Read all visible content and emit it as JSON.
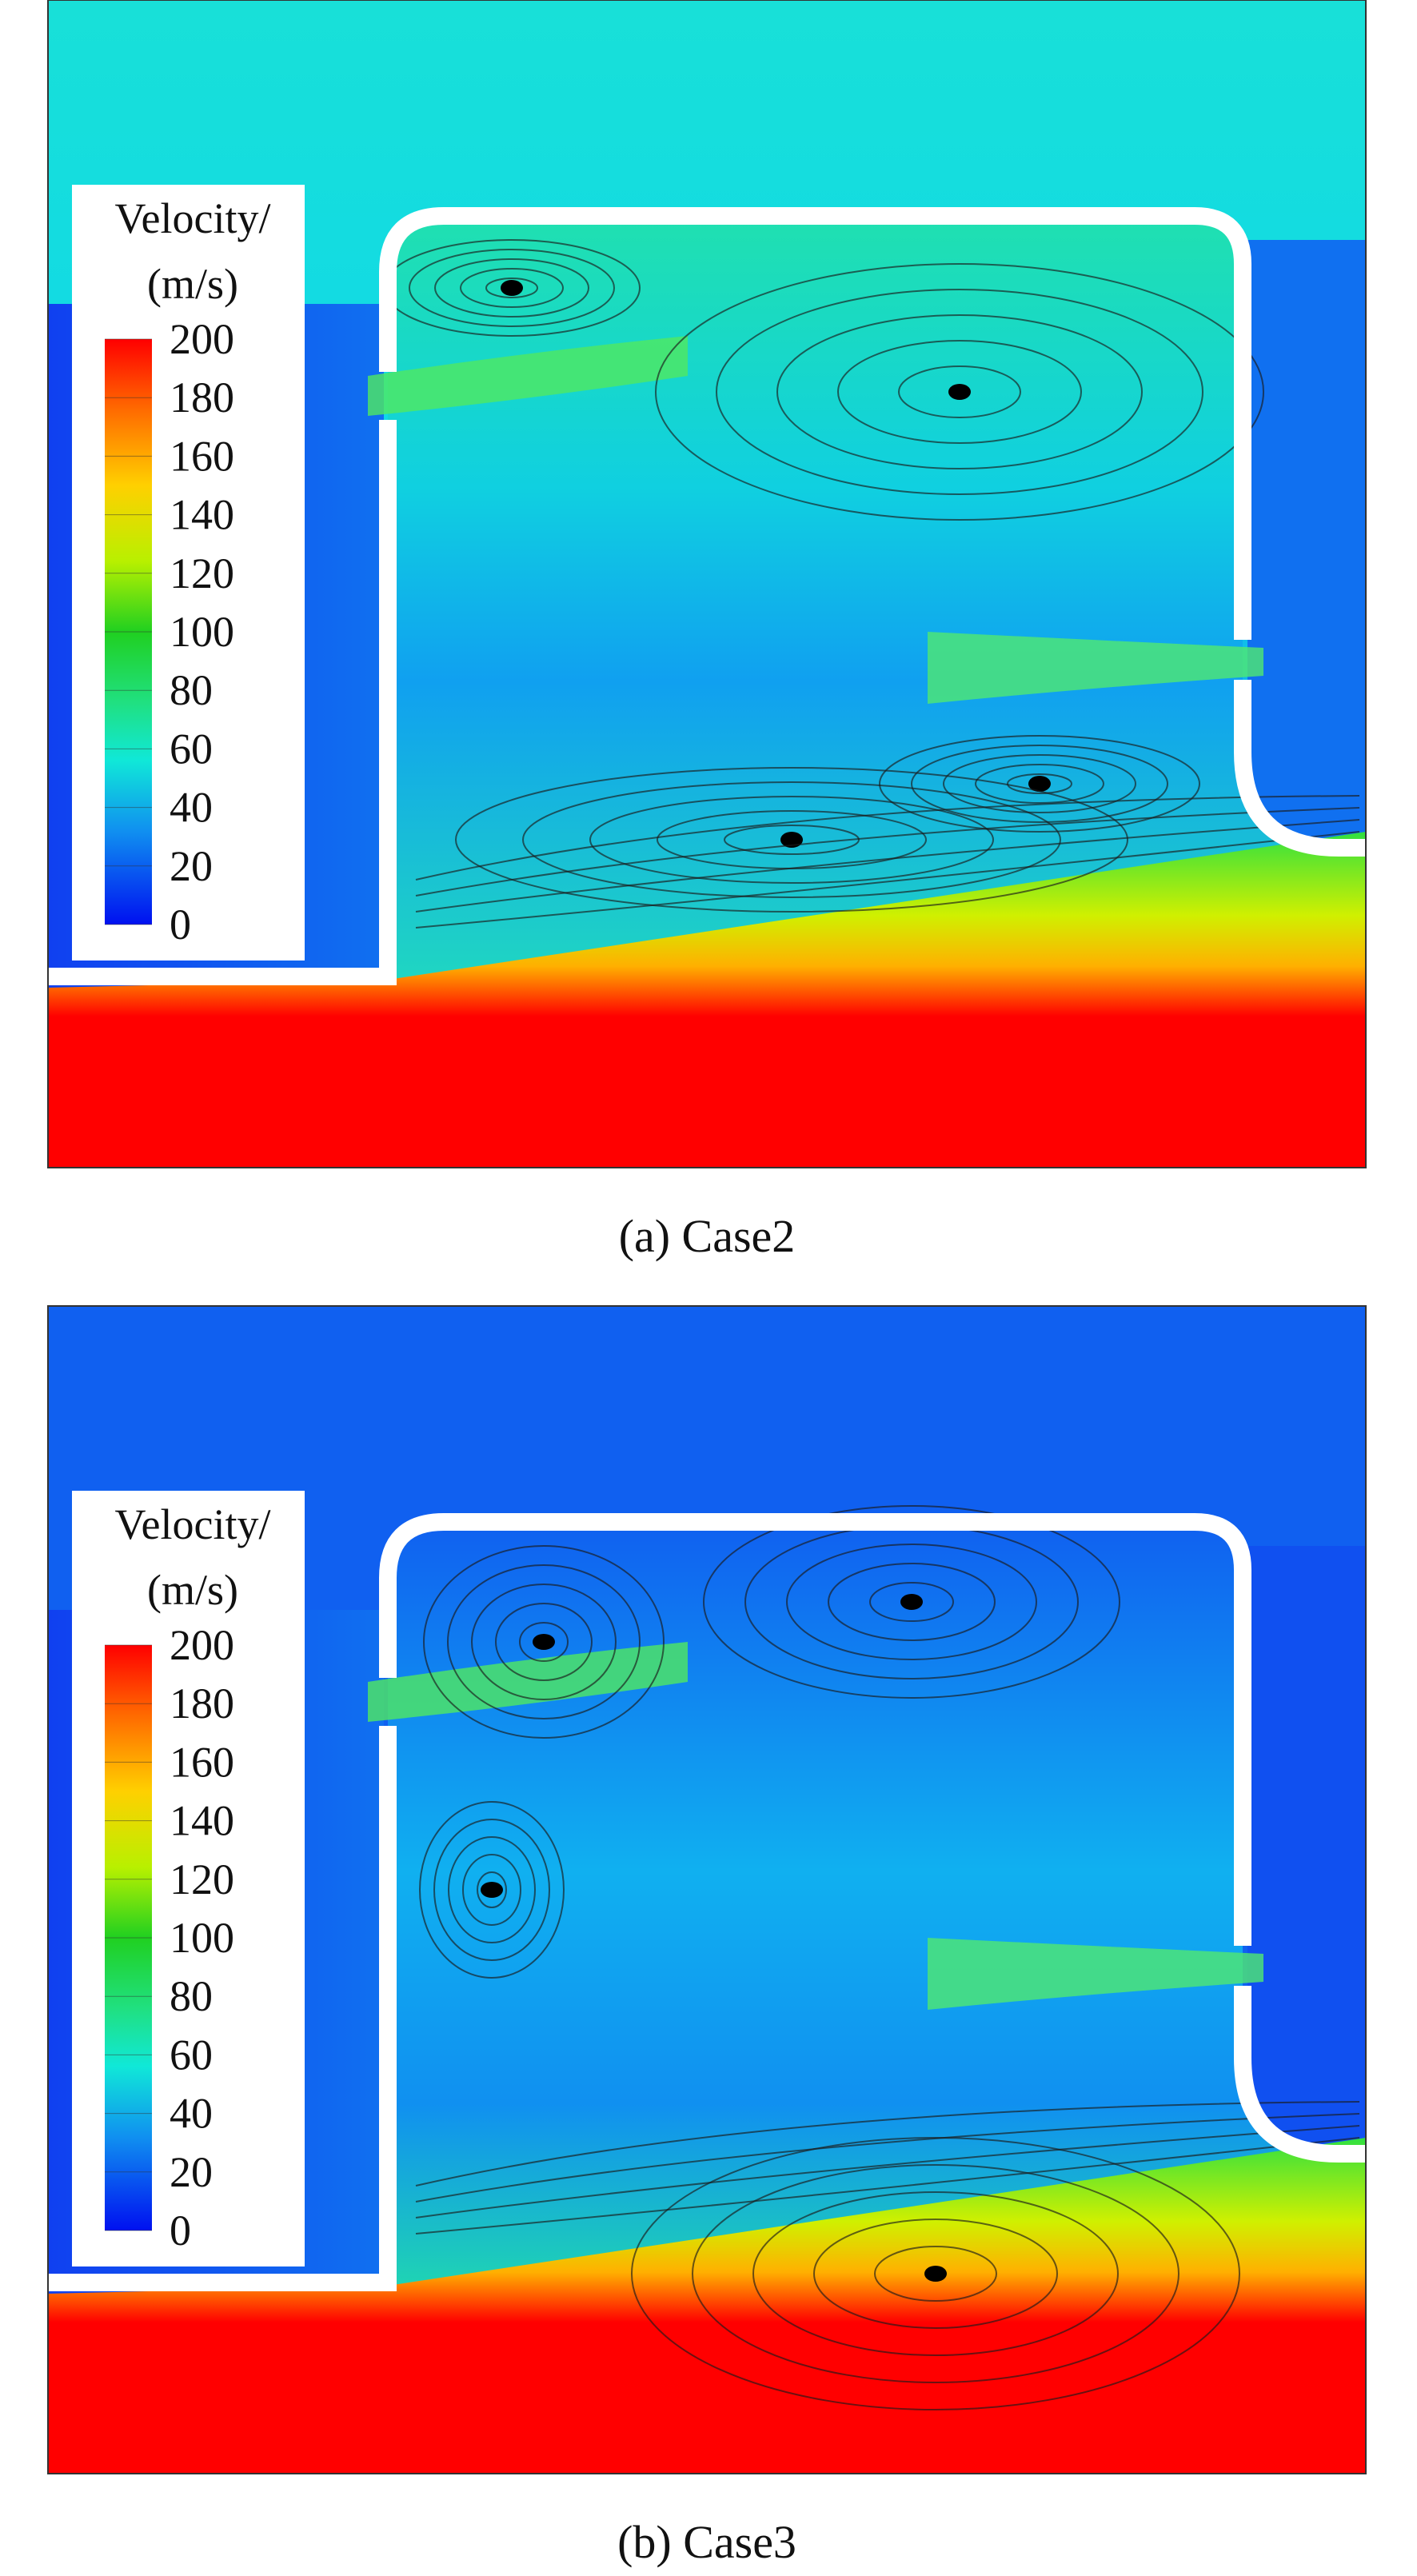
{
  "panels": [
    {
      "caption": "(a) Case2",
      "colorbar": {
        "title": [
          "Velocity/",
          "(m/s)"
        ],
        "ticks": [
          200,
          180,
          160,
          140,
          120,
          100,
          80,
          60,
          40,
          20,
          0
        ]
      }
    },
    {
      "caption": "(b) Case3",
      "colorbar": {
        "title": [
          "Velocity/",
          "(m/s)"
        ],
        "ticks": [
          200,
          180,
          160,
          140,
          120,
          100,
          80,
          60,
          40,
          20,
          0
        ]
      }
    }
  ]
}
